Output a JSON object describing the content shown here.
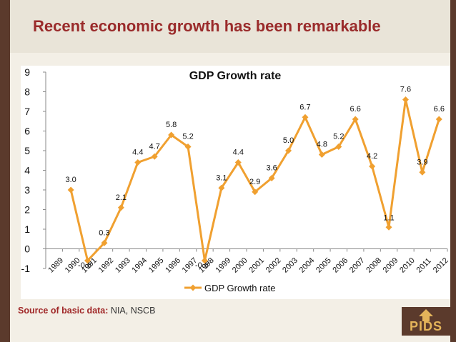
{
  "slide": {
    "title": "Recent economic growth has been remarkable",
    "source_label": "Source of basic data:",
    "source_value": " NIA, NSCB",
    "logo_text": "PIDS"
  },
  "colors": {
    "line": "#f0a030",
    "title": "#9a2b2b",
    "frame": "#5b3a2c"
  },
  "chart_data": {
    "type": "line",
    "title": "GDP Growth rate",
    "categories": [
      "1989",
      "1990",
      "1991",
      "1992",
      "1993",
      "1994",
      "1995",
      "1996",
      "1997",
      "1998",
      "1999",
      "2000",
      "2001",
      "2002",
      "2003",
      "2004",
      "2005",
      "2006",
      "2007",
      "2008",
      "2009",
      "2010",
      "2011",
      "2012"
    ],
    "series": [
      {
        "name": "GDP Growth rate",
        "values": [
          null,
          3.0,
          -0.6,
          0.3,
          2.1,
          4.4,
          4.7,
          5.8,
          5.2,
          -0.6,
          3.1,
          4.4,
          2.9,
          3.6,
          5.0,
          6.7,
          4.8,
          5.2,
          6.6,
          4.2,
          1.1,
          7.6,
          3.9,
          6.6
        ],
        "labels": [
          null,
          "3.0",
          "-0.6",
          "0.3",
          "2.1",
          "4.4",
          "4.7",
          "5.8",
          "5.2",
          "-0.6",
          "3.1",
          "4.4",
          "2.9",
          "3.6",
          "5.0",
          "6.7",
          "4.8",
          "5.2",
          "6.6",
          "4.2",
          "1.1",
          "7.6",
          "3.9",
          "6.6"
        ]
      }
    ],
    "ylim": [
      -1,
      9
    ],
    "yticks": [
      -1,
      0,
      1,
      2,
      3,
      4,
      5,
      6,
      7,
      8,
      9
    ],
    "grid": false,
    "legend": "bottom"
  }
}
